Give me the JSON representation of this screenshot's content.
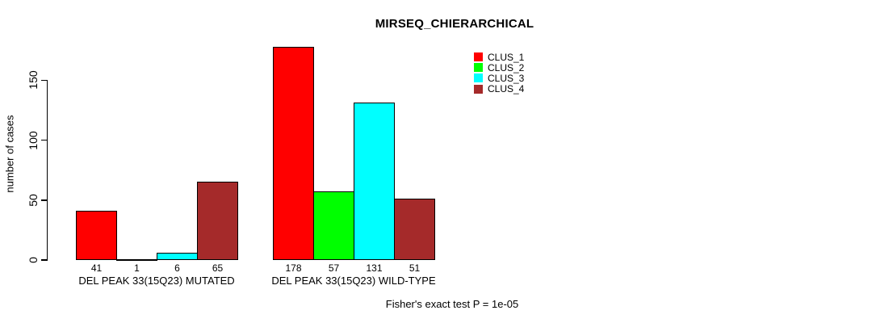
{
  "title": "MIRSEQ_CHIERARCHICAL",
  "footer": "Fisher's exact test P = 1e-05",
  "chart_data": {
    "type": "bar",
    "grouped": true,
    "title": "MIRSEQ_CHIERARCHICAL",
    "xlabel": "",
    "ylabel": "number of cases",
    "yticks": [
      0,
      50,
      100,
      150
    ],
    "ylim": [
      0,
      180
    ],
    "grid": false,
    "legend_position": "top-right",
    "bar_border_color": "#000000",
    "background_color": "#ffffff",
    "categories": [
      "DEL PEAK 33(15Q23) MUTATED",
      "DEL PEAK 33(15Q23) WILD-TYPE"
    ],
    "series": [
      {
        "name": "CLUS_1",
        "color": "#ff0000",
        "values": [
          41,
          178
        ]
      },
      {
        "name": "CLUS_2",
        "color": "#00ff00",
        "values": [
          1,
          57
        ]
      },
      {
        "name": "CLUS_3",
        "color": "#00ffff",
        "values": [
          6,
          131
        ]
      },
      {
        "name": "CLUS_4",
        "color": "#a52a2a",
        "values": [
          65,
          51
        ]
      }
    ],
    "bar_value_labels": {
      "DEL PEAK 33(15Q23) MUTATED": [
        41,
        1,
        6,
        65
      ],
      "DEL PEAK 33(15Q23) WILD-TYPE": [
        178,
        57,
        131,
        51
      ]
    }
  }
}
